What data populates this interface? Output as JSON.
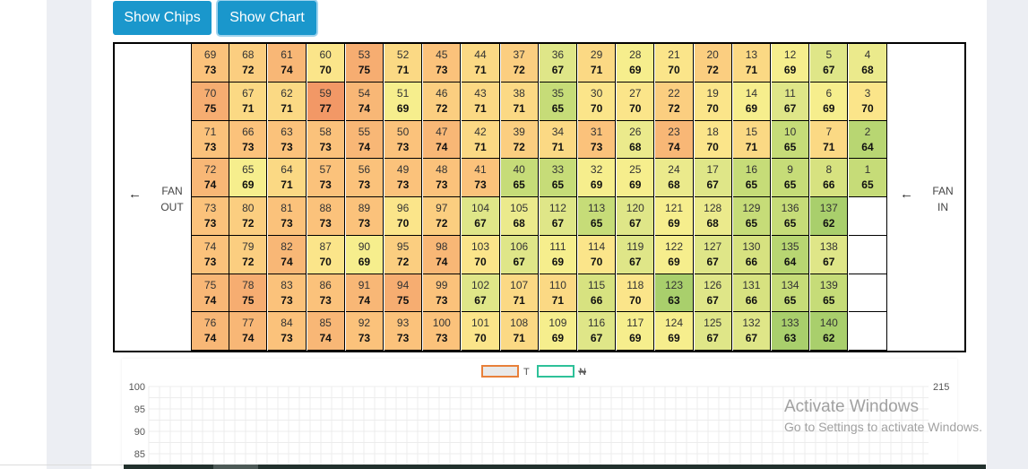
{
  "toolbar": {
    "show_chips_label": "Show Chips",
    "show_chart_label": "Show Chart"
  },
  "fans": {
    "out": {
      "arrow": "←",
      "label": "FAN\nOUT"
    },
    "in": {
      "arrow": "←",
      "label": "FAN\nIN"
    }
  },
  "grid": {
    "rows": [
      [
        [
          69,
          73
        ],
        [
          68,
          72
        ],
        [
          61,
          74
        ],
        [
          60,
          70
        ],
        [
          53,
          75
        ],
        [
          52,
          71
        ],
        [
          45,
          73
        ],
        [
          44,
          71
        ],
        [
          37,
          72
        ],
        [
          36,
          67
        ],
        [
          29,
          71
        ],
        [
          28,
          69
        ],
        [
          21,
          70
        ],
        [
          20,
          72
        ],
        [
          13,
          71
        ],
        [
          12,
          69
        ],
        [
          5,
          67
        ],
        [
          4,
          68
        ]
      ],
      [
        [
          70,
          75
        ],
        [
          67,
          71
        ],
        [
          62,
          71
        ],
        [
          59,
          77
        ],
        [
          54,
          74
        ],
        [
          51,
          69
        ],
        [
          46,
          72
        ],
        [
          43,
          71
        ],
        [
          38,
          71
        ],
        [
          35,
          65
        ],
        [
          30,
          70
        ],
        [
          27,
          70
        ],
        [
          22,
          72
        ],
        [
          19,
          70
        ],
        [
          14,
          69
        ],
        [
          11,
          67
        ],
        [
          6,
          69
        ],
        [
          3,
          70
        ]
      ],
      [
        [
          71,
          73
        ],
        [
          66,
          73
        ],
        [
          63,
          73
        ],
        [
          58,
          73
        ],
        [
          55,
          74
        ],
        [
          50,
          73
        ],
        [
          47,
          74
        ],
        [
          42,
          71
        ],
        [
          39,
          72
        ],
        [
          34,
          71
        ],
        [
          31,
          73
        ],
        [
          26,
          68
        ],
        [
          23,
          74
        ],
        [
          18,
          70
        ],
        [
          15,
          71
        ],
        [
          10,
          65
        ],
        [
          7,
          71
        ],
        [
          2,
          64
        ]
      ],
      [
        [
          72,
          74
        ],
        [
          65,
          69
        ],
        [
          64,
          71
        ],
        [
          57,
          73
        ],
        [
          56,
          73
        ],
        [
          49,
          73
        ],
        [
          48,
          73
        ],
        [
          41,
          73
        ],
        [
          40,
          65
        ],
        [
          33,
          65
        ],
        [
          32,
          69
        ],
        [
          25,
          69
        ],
        [
          24,
          68
        ],
        [
          17,
          67
        ],
        [
          16,
          65
        ],
        [
          9,
          65
        ],
        [
          8,
          66
        ],
        [
          1,
          65
        ]
      ],
      [
        [
          73,
          73
        ],
        [
          80,
          72
        ],
        [
          81,
          73
        ],
        [
          88,
          73
        ],
        [
          89,
          73
        ],
        [
          96,
          70
        ],
        [
          97,
          72
        ],
        [
          104,
          67
        ],
        [
          105,
          68
        ],
        [
          112,
          67
        ],
        [
          113,
          65
        ],
        [
          120,
          67
        ],
        [
          121,
          69
        ],
        [
          128,
          68
        ],
        [
          129,
          65
        ],
        [
          136,
          65
        ],
        [
          137,
          62
        ],
        null
      ],
      [
        [
          74,
          73
        ],
        [
          79,
          72
        ],
        [
          82,
          74
        ],
        [
          87,
          70
        ],
        [
          90,
          69
        ],
        [
          95,
          72
        ],
        [
          98,
          74
        ],
        [
          103,
          70
        ],
        [
          106,
          67
        ],
        [
          111,
          69
        ],
        [
          114,
          70
        ],
        [
          119,
          67
        ],
        [
          122,
          69
        ],
        [
          127,
          67
        ],
        [
          130,
          66
        ],
        [
          135,
          64
        ],
        [
          138,
          67
        ],
        null
      ],
      [
        [
          75,
          74
        ],
        [
          78,
          75
        ],
        [
          83,
          73
        ],
        [
          86,
          73
        ],
        [
          91,
          74
        ],
        [
          94,
          75
        ],
        [
          99,
          73
        ],
        [
          102,
          67
        ],
        [
          107,
          71
        ],
        [
          110,
          71
        ],
        [
          115,
          66
        ],
        [
          118,
          70
        ],
        [
          123,
          63
        ],
        [
          126,
          67
        ],
        [
          131,
          66
        ],
        [
          134,
          65
        ],
        [
          139,
          65
        ],
        null
      ],
      [
        [
          76,
          74
        ],
        [
          77,
          74
        ],
        [
          84,
          73
        ],
        [
          85,
          74
        ],
        [
          92,
          73
        ],
        [
          93,
          73
        ],
        [
          100,
          73
        ],
        [
          101,
          70
        ],
        [
          108,
          71
        ],
        [
          109,
          69
        ],
        [
          116,
          67
        ],
        [
          117,
          69
        ],
        [
          124,
          69
        ],
        [
          125,
          67
        ],
        [
          132,
          67
        ],
        [
          133,
          63
        ],
        [
          140,
          62
        ],
        null
      ]
    ]
  },
  "colors": {
    "t62": "#a9cf6c",
    "t63": "#a9cf6c",
    "t64": "#b8d672",
    "t65": "#c6dc78",
    "t66": "#d7e280",
    "t67": "#dfe688",
    "t68": "#ebea8c",
    "t69": "#f6ee8d",
    "t70": "#fbe58a",
    "t71": "#fbd984",
    "t72": "#fbce80",
    "t73": "#fbc27b",
    "t74": "#f8b776",
    "t75": "#f6ad71",
    "t77": "#f29866",
    "series_t": "#e8803a",
    "series_n": "#2ec199"
  },
  "chart_data": {
    "type": "line",
    "legend": [
      {
        "name": "T",
        "color": "#e8803a",
        "hidden": false
      },
      {
        "name": "N",
        "color": "#2ec199",
        "hidden": true
      }
    ],
    "y_left_ticks": [
      "100",
      "95",
      "90",
      "85"
    ],
    "y_right_ticks": [
      "215"
    ],
    "ylim": [
      85,
      100
    ],
    "grid": true
  },
  "watermark": {
    "line1": "Activate Windows",
    "line2": "Go to Settings to activate Windows."
  }
}
